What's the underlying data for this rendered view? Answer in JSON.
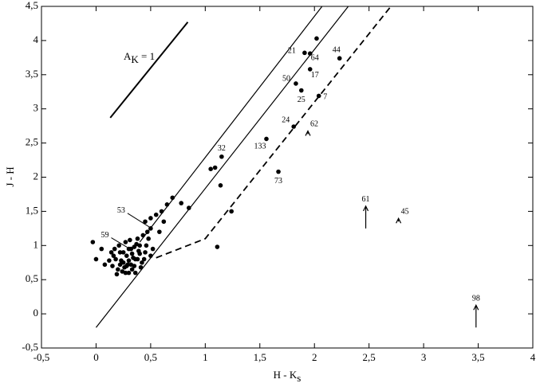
{
  "chart_data": {
    "type": "scatter",
    "xlabel": "H - K",
    "xlabel_sub": "s",
    "ylabel": "J - H",
    "color": "#000000",
    "xlim": [
      -0.5,
      4
    ],
    "ylim": [
      -0.5,
      4.5
    ],
    "xticks": [
      {
        "value": -0.5,
        "label": "-0,5"
      },
      0,
      {
        "value": 0.5,
        "label": "0,5"
      },
      1,
      {
        "value": 1.5,
        "label": "1,5"
      },
      2,
      {
        "value": 2.5,
        "label": "2,5"
      },
      3,
      {
        "value": 3.5,
        "label": "3,5"
      },
      4
    ],
    "yticks": [
      {
        "value": -0.5,
        "label": "-0,5"
      },
      0,
      {
        "value": 0.5,
        "label": "0,5"
      },
      1,
      {
        "value": 1.5,
        "label": "1,5"
      },
      2,
      {
        "value": 2.5,
        "label": "2,5"
      },
      3,
      {
        "value": 3.5,
        "label": "3,5"
      },
      4,
      {
        "value": 4.5,
        "label": "4,5"
      }
    ],
    "annotation": {
      "text": "A",
      "sub": "K",
      "rest": " = 1"
    },
    "lines": [
      {
        "x": [
          0.13,
          0.84
        ],
        "y": [
          2.87,
          4.27
        ],
        "dashed": false,
        "width": 2
      },
      {
        "x": [
          0,
          2.31
        ],
        "y": [
          -0.2,
          4.5
        ],
        "dashed": false,
        "width": 1.2
      },
      {
        "x": [
          0.4,
          2.07
        ],
        "y": [
          1.05,
          4.5
        ],
        "dashed": false,
        "width": 1.2
      },
      {
        "x": [
          0.55,
          1.0,
          2.7
        ],
        "y": [
          0.82,
          1.1,
          4.5
        ],
        "dashed": true,
        "width": 1.8
      }
    ],
    "points": {
      "x": [
        0.15,
        0.18,
        0.2,
        0.22,
        0.25,
        0.28,
        0.3,
        0.32,
        0.35,
        0.38,
        0.4,
        0.42,
        0.45,
        0.48,
        0.5,
        0.17,
        0.21,
        0.24,
        0.27,
        0.29,
        0.33,
        0.36,
        0.39,
        0.43,
        0.47,
        0.19,
        0.23,
        0.26,
        0.31,
        0.34,
        0.37,
        0.41,
        0.44,
        0.52,
        0.16,
        0.25,
        0.3,
        0.35,
        0.4,
        0.28,
        0.33,
        0.38,
        0.22,
        0.27,
        0.32,
        0.36,
        0.46,
        0.12,
        0.14,
        0.08,
        -0.03,
        0.0,
        0.05,
        0.6,
        0.65,
        0.7,
        0.78,
        0.85,
        0.55,
        0.5,
        0.45,
        0.58,
        0.62,
        1.05,
        1.09,
        1.14,
        1.24,
        1.11,
        2.02
      ],
      "y": [
        0.7,
        0.8,
        0.65,
        0.9,
        0.75,
        0.85,
        0.6,
        0.95,
        0.7,
        0.8,
        1.0,
        0.75,
        0.9,
        1.1,
        0.85,
        0.95,
        1.0,
        0.62,
        1.05,
        0.72,
        0.88,
        0.6,
        0.92,
        1.15,
        1.2,
        0.58,
        0.78,
        0.68,
        1.08,
        0.82,
        1.02,
        0.68,
        0.8,
        0.95,
        0.85,
        0.9,
        0.78,
        0.98,
        0.88,
        0.7,
        0.65,
        1.1,
        0.72,
        0.6,
        0.72,
        0.8,
        1.0,
        0.78,
        0.9,
        0.72,
        1.05,
        0.8,
        0.95,
        1.5,
        1.6,
        1.7,
        1.62,
        1.55,
        1.45,
        1.4,
        1.35,
        1.2,
        1.35,
        2.12,
        2.14,
        1.88,
        1.5,
        0.98,
        4.03
      ]
    },
    "labeled_points": {
      "x": [
        1.91,
        1.96,
        2.23,
        1.96,
        1.83,
        1.88,
        2.04,
        1.81,
        1.56,
        1.67,
        1.15,
        0.5,
        0.3
      ],
      "y": [
        3.82,
        3.81,
        3.74,
        3.58,
        3.37,
        3.27,
        3.19,
        2.74,
        2.56,
        2.08,
        2.3,
        1.25,
        0.95
      ],
      "labels": [
        "21",
        "64",
        "44",
        "17",
        "50",
        "25",
        "7",
        "24",
        "133",
        "73",
        "32",
        "53",
        "59"
      ]
    },
    "limits": {
      "x": [
        1.94,
        2.47,
        2.77,
        3.48
      ],
      "y": [
        2.63,
        1.25,
        1.35,
        -0.2
      ],
      "labels": [
        "62",
        "61",
        "45",
        "98"
      ]
    }
  }
}
